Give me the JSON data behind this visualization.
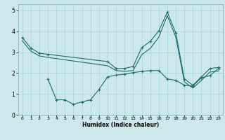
{
  "title": "",
  "xlabel": "Humidex (Indice chaleur)",
  "xlim": [
    -0.5,
    23.5
  ],
  "ylim": [
    0,
    5.3
  ],
  "yticks": [
    0,
    1,
    2,
    3,
    4,
    5
  ],
  "xticks": [
    0,
    1,
    2,
    3,
    4,
    5,
    6,
    7,
    8,
    9,
    10,
    11,
    12,
    13,
    14,
    15,
    16,
    17,
    18,
    19,
    20,
    21,
    22,
    23
  ],
  "bg_color": "#cce8ea",
  "line_color": "#1e6b6b",
  "grid_color": "#aad4d8",
  "series1_x": [
    0,
    1,
    2,
    3,
    10,
    11,
    12,
    13,
    14,
    15,
    16,
    17,
    18,
    19,
    20,
    21,
    22,
    23
  ],
  "series1_y": [
    3.7,
    3.2,
    2.95,
    2.9,
    2.55,
    2.22,
    2.22,
    2.32,
    3.22,
    3.52,
    4.02,
    4.92,
    3.92,
    1.72,
    1.42,
    1.82,
    2.22,
    2.27
  ],
  "series2_x": [
    0,
    1,
    2,
    3,
    10,
    11,
    12,
    13,
    14,
    15,
    16,
    17,
    18,
    19,
    20,
    21,
    22,
    23
  ],
  "series2_y": [
    3.55,
    3.05,
    2.82,
    2.75,
    2.35,
    2.12,
    2.08,
    2.12,
    2.88,
    3.18,
    3.72,
    4.75,
    3.72,
    1.58,
    1.28,
    1.65,
    2.05,
    2.1
  ],
  "series3_x": [
    3,
    4,
    5,
    6,
    7,
    8,
    9,
    10,
    11,
    12,
    13,
    14,
    15,
    16,
    17,
    18,
    19,
    20,
    21,
    22,
    23
  ],
  "series3_y": [
    1.72,
    0.72,
    0.72,
    0.5,
    0.62,
    0.72,
    1.22,
    1.82,
    1.9,
    1.95,
    2.02,
    2.08,
    2.12,
    2.12,
    1.72,
    1.65,
    1.42,
    1.38,
    1.78,
    1.88,
    2.22
  ]
}
